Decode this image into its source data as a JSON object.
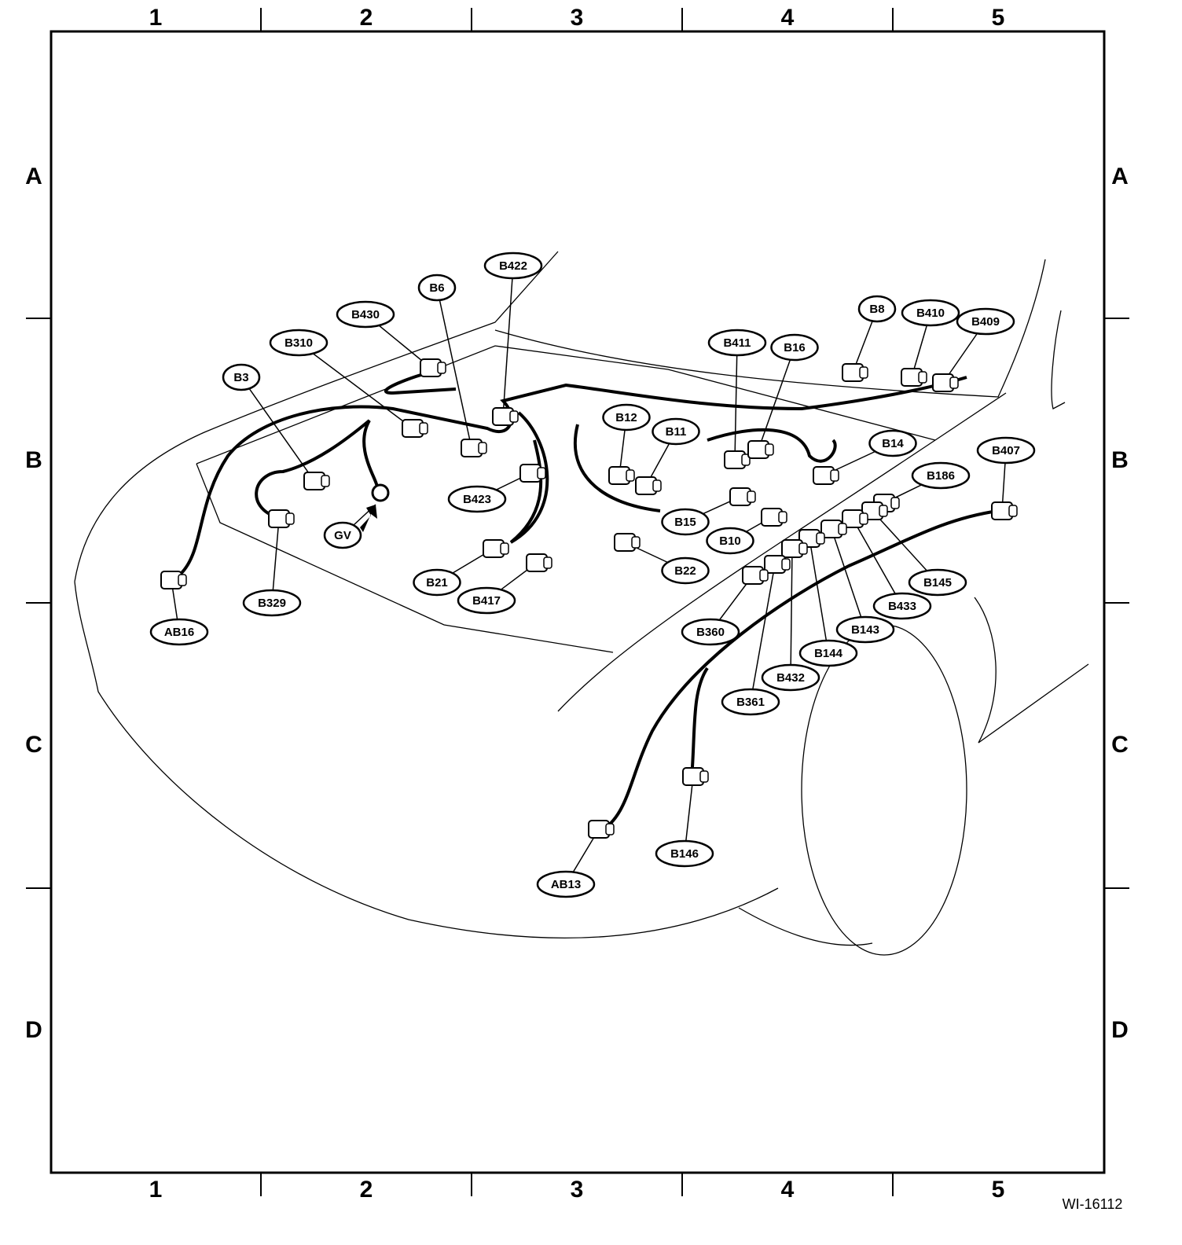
{
  "columns": [
    "1",
    "2",
    "3",
    "4",
    "5"
  ],
  "rows": [
    "A",
    "B",
    "C",
    "D"
  ],
  "connectors": [
    {
      "label": "B422"
    },
    {
      "label": "B6"
    },
    {
      "label": "B430"
    },
    {
      "label": "B310"
    },
    {
      "label": "B3"
    },
    {
      "label": "GV"
    },
    {
      "label": "B329"
    },
    {
      "label": "AB16"
    },
    {
      "label": "B423"
    },
    {
      "label": "B21"
    },
    {
      "label": "B417"
    },
    {
      "label": "B12"
    },
    {
      "label": "B11"
    },
    {
      "label": "B411"
    },
    {
      "label": "B16"
    },
    {
      "label": "B8"
    },
    {
      "label": "B410"
    },
    {
      "label": "B409"
    },
    {
      "label": "B14"
    },
    {
      "label": "B15"
    },
    {
      "label": "B10"
    },
    {
      "label": "B22"
    },
    {
      "label": "B407"
    },
    {
      "label": "B186"
    },
    {
      "label": "B145"
    },
    {
      "label": "B433"
    },
    {
      "label": "B143"
    },
    {
      "label": "B144"
    },
    {
      "label": "B432"
    },
    {
      "label": "B361"
    },
    {
      "label": "B360"
    },
    {
      "label": "B146"
    },
    {
      "label": "AB13"
    }
  ],
  "code": "WI-16112"
}
